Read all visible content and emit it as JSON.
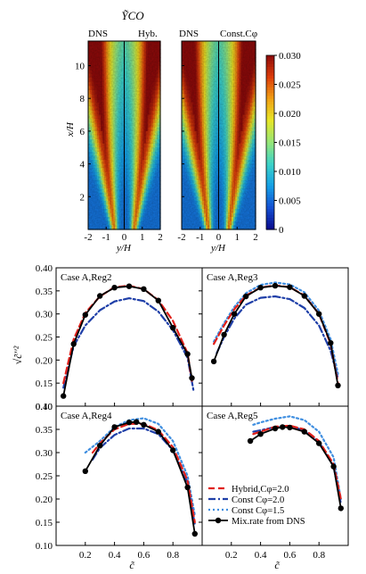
{
  "chart_data": [
    {
      "type": "heatmap",
      "title": "ỸCO",
      "panels": [
        {
          "left_label": "DNS",
          "right_label": "Hyb."
        },
        {
          "left_label": "DNS",
          "right_label": "Const.Cφ"
        }
      ],
      "xlabel": "y/H",
      "ylabel": "x/H",
      "xlim": [
        -2,
        2
      ],
      "ylim": [
        0,
        11.5
      ],
      "xticks": [
        "-2",
        "-1",
        "0",
        "1",
        "2"
      ],
      "yticks": [
        "2",
        "4",
        "6",
        "8",
        "10"
      ],
      "colorbar": {
        "min": 0,
        "max": 0.03,
        "ticks": [
          "0",
          "0.005",
          "0.010",
          "0.015",
          "0.020",
          "0.025",
          "0.030"
        ],
        "colors": [
          "#0a0a8c",
          "#1450d2",
          "#14a0e6",
          "#3cd2c8",
          "#96e678",
          "#e6e628",
          "#f0a014",
          "#dc3c0a",
          "#8c0a0a"
        ]
      }
    },
    {
      "type": "line",
      "xlabel": "c̃",
      "ylabel": "√c̃′′²",
      "ylim": [
        0.1,
        0.4
      ],
      "xlim": [
        0,
        1
      ],
      "yticks": [
        "0.10",
        "0.15",
        "0.20",
        "0.25",
        "0.30",
        "0.35",
        "0.40"
      ],
      "xticks_bottom_left": [
        "0.2",
        "0.4",
        "0.6",
        "0.8"
      ],
      "xticks_bottom_right": [
        "0.2",
        "0.4",
        "0.6",
        "0.8"
      ],
      "grid": false,
      "legend_placement": "bottom-right",
      "legend": [
        {
          "label": "Hybrid,Cφ=2.0",
          "color": "#e0201a",
          "style": "dash"
        },
        {
          "label": "Const Cφ=2.0",
          "color": "#1f3fa8",
          "style": "dashdot"
        },
        {
          "label": "Const Cφ=1.5",
          "color": "#3f8ee0",
          "style": "dot"
        },
        {
          "label": "Mix.rate from DNS",
          "color": "#000000",
          "style": "solid-marker"
        }
      ],
      "panels": [
        {
          "title": "Case A,Reg2",
          "series": [
            {
              "name": "Mix.rate from DNS",
              "x": [
                0.05,
                0.12,
                0.2,
                0.3,
                0.4,
                0.5,
                0.6,
                0.7,
                0.8,
                0.9,
                0.93
              ],
              "y": [
                0.122,
                0.235,
                0.298,
                0.339,
                0.357,
                0.36,
                0.354,
                0.329,
                0.27,
                0.213,
                0.161
              ]
            },
            {
              "name": "Hybrid,Cφ=2.0",
              "x": [
                0.05,
                0.12,
                0.2,
                0.3,
                0.4,
                0.5,
                0.6,
                0.7,
                0.8,
                0.9,
                0.93
              ],
              "y": [
                0.15,
                0.245,
                0.302,
                0.338,
                0.358,
                0.361,
                0.354,
                0.33,
                0.285,
                0.215,
                0.155
              ]
            },
            {
              "name": "Const Cφ=2.0",
              "x": [
                0.05,
                0.12,
                0.2,
                0.3,
                0.4,
                0.5,
                0.6,
                0.7,
                0.8,
                0.9,
                0.94
              ],
              "y": [
                0.14,
                0.23,
                0.275,
                0.308,
                0.327,
                0.334,
                0.328,
                0.305,
                0.265,
                0.205,
                0.135
              ]
            }
          ]
        },
        {
          "title": "Case A,Reg3",
          "series": [
            {
              "name": "Mix.rate from DNS",
              "x": [
                0.08,
                0.15,
                0.22,
                0.3,
                0.4,
                0.5,
                0.6,
                0.7,
                0.8,
                0.88,
                0.93
              ],
              "y": [
                0.197,
                0.255,
                0.3,
                0.338,
                0.357,
                0.361,
                0.358,
                0.339,
                0.3,
                0.237,
                0.145
              ]
            },
            {
              "name": "Hybrid,Cφ=2.0",
              "x": [
                0.08,
                0.15,
                0.22,
                0.3,
                0.4,
                0.5,
                0.6,
                0.7,
                0.8,
                0.88,
                0.93
              ],
              "y": [
                0.235,
                0.275,
                0.31,
                0.34,
                0.357,
                0.362,
                0.358,
                0.34,
                0.3,
                0.235,
                0.15
              ]
            },
            {
              "name": "Const Cφ=2.0",
              "x": [
                0.1,
                0.15,
                0.22,
                0.3,
                0.4,
                0.5,
                0.6,
                0.7,
                0.8,
                0.88,
                0.93
              ],
              "y": [
                0.215,
                0.25,
                0.29,
                0.32,
                0.335,
                0.338,
                0.332,
                0.313,
                0.275,
                0.22,
                0.16
              ]
            },
            {
              "name": "Const Cφ=1.5",
              "x": [
                0.08,
                0.15,
                0.22,
                0.3,
                0.4,
                0.5,
                0.6,
                0.7,
                0.8,
                0.88,
                0.93
              ],
              "y": [
                0.24,
                0.28,
                0.315,
                0.345,
                0.363,
                0.368,
                0.364,
                0.347,
                0.307,
                0.245,
                0.17
              ]
            }
          ]
        },
        {
          "title": "Case A,Reg4",
          "series": [
            {
              "name": "Mix.rate from DNS",
              "x": [
                0.2,
                0.3,
                0.4,
                0.5,
                0.55,
                0.6,
                0.7,
                0.8,
                0.9,
                0.95
              ],
              "y": [
                0.26,
                0.315,
                0.355,
                0.365,
                0.366,
                0.36,
                0.345,
                0.305,
                0.225,
                0.125
              ]
            },
            {
              "name": "Hybrid,Cφ=2.0",
              "x": [
                0.25,
                0.3,
                0.4,
                0.5,
                0.6,
                0.7,
                0.8,
                0.9,
                0.95
              ],
              "y": [
                0.3,
                0.32,
                0.35,
                0.362,
                0.362,
                0.348,
                0.312,
                0.24,
                0.15
              ]
            },
            {
              "name": "Const Cφ=2.0",
              "x": [
                0.25,
                0.3,
                0.4,
                0.5,
                0.6,
                0.7,
                0.8,
                0.9,
                0.95
              ],
              "y": [
                0.285,
                0.31,
                0.338,
                0.352,
                0.352,
                0.34,
                0.305,
                0.235,
                0.145
              ]
            },
            {
              "name": "Const Cφ=1.5",
              "x": [
                0.2,
                0.3,
                0.4,
                0.5,
                0.6,
                0.7,
                0.8,
                0.9,
                0.95
              ],
              "y": [
                0.3,
                0.325,
                0.355,
                0.37,
                0.374,
                0.362,
                0.325,
                0.25,
                0.165
              ]
            }
          ]
        },
        {
          "title": "Case A,Reg5",
          "series": [
            {
              "name": "Mix.rate from DNS",
              "x": [
                0.33,
                0.4,
                0.5,
                0.55,
                0.6,
                0.7,
                0.8,
                0.9,
                0.95
              ],
              "y": [
                0.325,
                0.34,
                0.352,
                0.355,
                0.354,
                0.345,
                0.32,
                0.27,
                0.18
              ]
            },
            {
              "name": "Hybrid,Cφ=2.0",
              "x": [
                0.35,
                0.4,
                0.5,
                0.6,
                0.7,
                0.8,
                0.9,
                0.95
              ],
              "y": [
                0.34,
                0.345,
                0.356,
                0.358,
                0.35,
                0.325,
                0.275,
                0.2
              ]
            },
            {
              "name": "Const Cφ=2.0",
              "x": [
                0.35,
                0.4,
                0.5,
                0.6,
                0.7,
                0.8,
                0.9,
                0.95
              ],
              "y": [
                0.345,
                0.348,
                0.355,
                0.357,
                0.348,
                0.323,
                0.27,
                0.19
              ]
            },
            {
              "name": "Const Cφ=1.5",
              "x": [
                0.35,
                0.4,
                0.5,
                0.6,
                0.7,
                0.8,
                0.9,
                0.95
              ],
              "y": [
                0.36,
                0.365,
                0.373,
                0.378,
                0.37,
                0.345,
                0.29,
                0.2
              ]
            }
          ]
        }
      ]
    }
  ]
}
